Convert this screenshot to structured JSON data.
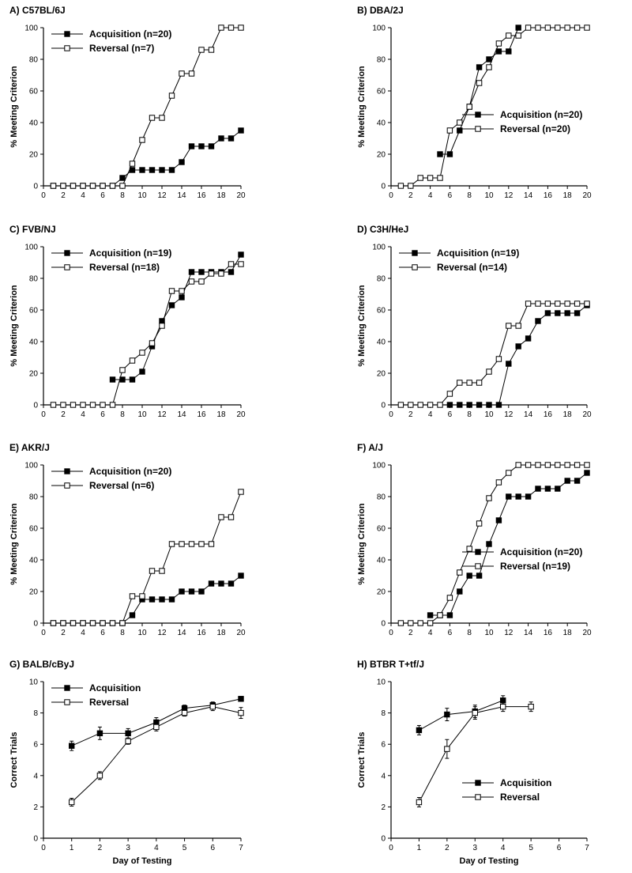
{
  "figure": {
    "panels": [
      {
        "id": "A",
        "title": "A) C57BL/6J",
        "ylabel": "% Meeting Criterion",
        "xlabel": "",
        "xlim": [
          0,
          20
        ],
        "ylim": [
          0,
          100
        ],
        "xticks": [
          0,
          2,
          4,
          6,
          8,
          10,
          12,
          14,
          16,
          18,
          20
        ],
        "yticks": [
          0,
          20,
          40,
          60,
          80,
          100
        ],
        "legend_position": "top-left",
        "series": [
          {
            "name": "Acquisition (n=20)",
            "marker": "filled",
            "x": [
              1,
              2,
              3,
              4,
              5,
              6,
              7,
              8,
              9,
              10,
              11,
              12,
              13,
              14,
              15,
              16,
              17,
              18,
              19,
              20
            ],
            "y": [
              0,
              0,
              0,
              0,
              0,
              0,
              0,
              5,
              10,
              10,
              10,
              10,
              10,
              15,
              25,
              25,
              25,
              30,
              30,
              35
            ]
          },
          {
            "name": "Reversal (n=7)",
            "marker": "open",
            "x": [
              1,
              2,
              3,
              4,
              5,
              6,
              7,
              8,
              9,
              10,
              11,
              12,
              13,
              14,
              15,
              16,
              17,
              18,
              19,
              20
            ],
            "y": [
              0,
              0,
              0,
              0,
              0,
              0,
              0,
              0,
              14,
              29,
              43,
              43,
              57,
              71,
              71,
              86,
              86,
              100,
              100,
              100
            ]
          }
        ]
      },
      {
        "id": "B",
        "title": "B) DBA/2J",
        "ylabel": "% Meeting Criterion",
        "xlabel": "",
        "xlim": [
          0,
          20
        ],
        "ylim": [
          0,
          100
        ],
        "xticks": [
          0,
          2,
          4,
          6,
          8,
          10,
          12,
          14,
          16,
          18,
          20
        ],
        "yticks": [
          0,
          20,
          40,
          60,
          80,
          100
        ],
        "legend_position": "center-right",
        "series": [
          {
            "name": "Acquisition (n=20)",
            "marker": "filled",
            "x": [
              5,
              6,
              7,
              8,
              9,
              10,
              11,
              12,
              13
            ],
            "y": [
              20,
              20,
              35,
              50,
              75,
              80,
              85,
              85,
              100
            ]
          },
          {
            "name": "Reversal (n=20)",
            "marker": "open",
            "x": [
              1,
              2,
              3,
              4,
              5,
              6,
              7,
              8,
              9,
              10,
              11,
              12,
              13,
              14,
              15,
              16,
              17,
              18,
              19,
              20
            ],
            "y": [
              0,
              0,
              5,
              5,
              5,
              35,
              40,
              50,
              65,
              75,
              90,
              95,
              95,
              100,
              100,
              100,
              100,
              100,
              100,
              100
            ]
          }
        ]
      },
      {
        "id": "C",
        "title": "C) FVB/NJ",
        "ylabel": "% Meeting Criterion",
        "xlabel": "",
        "xlim": [
          0,
          20
        ],
        "ylim": [
          0,
          100
        ],
        "xticks": [
          0,
          2,
          4,
          6,
          8,
          10,
          12,
          14,
          16,
          18,
          20
        ],
        "yticks": [
          0,
          20,
          40,
          60,
          80,
          100
        ],
        "legend_position": "top-left",
        "series": [
          {
            "name": "Acquisition (n=19)",
            "marker": "filled",
            "x": [
              7,
              8,
              9,
              10,
              11,
              12,
              13,
              14,
              15,
              16,
              17,
              18,
              19,
              20
            ],
            "y": [
              16,
              16,
              16,
              21,
              37,
              53,
              63,
              68,
              84,
              84,
              84,
              84,
              84,
              95
            ]
          },
          {
            "name": "Reversal (n=18)",
            "marker": "open",
            "x": [
              1,
              2,
              3,
              4,
              5,
              6,
              7,
              8,
              9,
              10,
              11,
              12,
              13,
              14,
              15,
              16,
              17,
              18,
              19,
              20
            ],
            "y": [
              0,
              0,
              0,
              0,
              0,
              0,
              0,
              22,
              28,
              33,
              39,
              50,
              72,
              72,
              78,
              78,
              83,
              83,
              89,
              89
            ]
          }
        ]
      },
      {
        "id": "D",
        "title": "D) C3H/HeJ",
        "ylabel": "% Meeting Criterion",
        "xlabel": "",
        "xlim": [
          0,
          20
        ],
        "ylim": [
          0,
          100
        ],
        "xticks": [
          0,
          2,
          4,
          6,
          8,
          10,
          12,
          14,
          16,
          18,
          20
        ],
        "yticks": [
          0,
          20,
          40,
          60,
          80,
          100
        ],
        "legend_position": "top-left",
        "series": [
          {
            "name": "Acquisition (n=19)",
            "marker": "filled",
            "x": [
              6,
              7,
              8,
              9,
              10,
              11,
              12,
              13,
              14,
              15,
              16,
              17,
              18,
              19,
              20
            ],
            "y": [
              0,
              0,
              0,
              0,
              0,
              0,
              26,
              37,
              42,
              53,
              58,
              58,
              58,
              58,
              63
            ]
          },
          {
            "name": "Reversal (n=14)",
            "marker": "open",
            "x": [
              1,
              2,
              3,
              4,
              5,
              6,
              7,
              8,
              9,
              10,
              11,
              12,
              13,
              14,
              15,
              16,
              17,
              18,
              19,
              20
            ],
            "y": [
              0,
              0,
              0,
              0,
              0,
              7,
              14,
              14,
              14,
              21,
              29,
              50,
              50,
              64,
              64,
              64,
              64,
              64,
              64,
              64
            ]
          }
        ]
      },
      {
        "id": "E",
        "title": "E) AKR/J",
        "ylabel": "% Meeting Criterion",
        "xlabel": "",
        "xlim": [
          0,
          20
        ],
        "ylim": [
          0,
          100
        ],
        "xticks": [
          0,
          2,
          4,
          6,
          8,
          10,
          12,
          14,
          16,
          18,
          20
        ],
        "yticks": [
          0,
          20,
          40,
          60,
          80,
          100
        ],
        "legend_position": "top-left",
        "series": [
          {
            "name": "Acquisition (n=20)",
            "marker": "filled",
            "x": [
              1,
              2,
              3,
              4,
              5,
              6,
              7,
              8,
              9,
              10,
              11,
              12,
              13,
              14,
              15,
              16,
              17,
              18,
              19,
              20
            ],
            "y": [
              0,
              0,
              0,
              0,
              0,
              0,
              0,
              0,
              5,
              15,
              15,
              15,
              15,
              20,
              20,
              20,
              25,
              25,
              25,
              30
            ]
          },
          {
            "name": "Reversal (n=6)",
            "marker": "open",
            "x": [
              1,
              2,
              3,
              4,
              5,
              6,
              7,
              8,
              9,
              10,
              11,
              12,
              13,
              14,
              15,
              16,
              17,
              18,
              19,
              20
            ],
            "y": [
              0,
              0,
              0,
              0,
              0,
              0,
              0,
              0,
              17,
              17,
              33,
              33,
              50,
              50,
              50,
              50,
              50,
              67,
              67,
              83
            ]
          }
        ]
      },
      {
        "id": "F",
        "title": "F) A/J",
        "ylabel": "% Meeting Criterion",
        "xlabel": "",
        "xlim": [
          0,
          20
        ],
        "ylim": [
          0,
          100
        ],
        "xticks": [
          0,
          2,
          4,
          6,
          8,
          10,
          12,
          14,
          16,
          18,
          20
        ],
        "yticks": [
          0,
          20,
          40,
          60,
          80,
          100
        ],
        "legend_position": "center-right",
        "series": [
          {
            "name": "Acquisition (n=20)",
            "marker": "filled",
            "x": [
              4,
              5,
              6,
              7,
              8,
              9,
              10,
              11,
              12,
              13,
              14,
              15,
              16,
              17,
              18,
              19,
              20
            ],
            "y": [
              5,
              5,
              5,
              20,
              30,
              30,
              50,
              65,
              80,
              80,
              80,
              85,
              85,
              85,
              90,
              90,
              95
            ]
          },
          {
            "name": "Reversal (n=19)",
            "marker": "open",
            "x": [
              1,
              2,
              3,
              4,
              5,
              6,
              7,
              8,
              9,
              10,
              11,
              12,
              13,
              14,
              15,
              16,
              17,
              18,
              19,
              20
            ],
            "y": [
              0,
              0,
              0,
              0,
              5,
              16,
              32,
              47,
              63,
              79,
              89,
              95,
              100,
              100,
              100,
              100,
              100,
              100,
              100,
              100
            ]
          }
        ]
      },
      {
        "id": "G",
        "title": "G) BALB/cByJ",
        "ylabel": "Correct Trials",
        "xlabel": "Day of Testing",
        "xlim": [
          0,
          7
        ],
        "ylim": [
          0,
          10
        ],
        "xticks": [
          0,
          1,
          2,
          3,
          4,
          5,
          6,
          7
        ],
        "yticks": [
          0,
          2,
          4,
          6,
          8,
          10
        ],
        "legend_position": "top-left",
        "series": [
          {
            "name": "Acquisition",
            "marker": "filled",
            "x": [
              1,
              2,
              3,
              4,
              5,
              6,
              7
            ],
            "y": [
              5.9,
              6.7,
              6.7,
              7.4,
              8.3,
              8.5,
              8.9
            ],
            "err": [
              0.3,
              0.4,
              0.3,
              0.3,
              0.2,
              0.2,
              0.15
            ]
          },
          {
            "name": "Reversal",
            "marker": "open",
            "x": [
              1,
              2,
              3,
              4,
              5,
              6,
              7
            ],
            "y": [
              2.3,
              4.0,
              6.2,
              7.1,
              8.0,
              8.4,
              8.0
            ],
            "err": [
              0.25,
              0.25,
              0.2,
              0.25,
              0.2,
              0.25,
              0.35
            ]
          }
        ]
      },
      {
        "id": "H",
        "title": "H) BTBR T+tf/J",
        "ylabel": "Correct Trials",
        "xlabel": "Day of Testing",
        "xlim": [
          0,
          7
        ],
        "ylim": [
          0,
          10
        ],
        "xticks": [
          0,
          1,
          2,
          3,
          4,
          5,
          6,
          7
        ],
        "yticks": [
          0,
          2,
          4,
          6,
          8,
          10
        ],
        "legend_position": "bottom-right",
        "series": [
          {
            "name": "Acquisition",
            "marker": "filled",
            "x": [
              1,
              2,
              3,
              4
            ],
            "y": [
              6.9,
              7.9,
              8.1,
              8.8
            ],
            "err": [
              0.3,
              0.4,
              0.4,
              0.3
            ]
          },
          {
            "name": "Reversal",
            "marker": "open",
            "x": [
              1,
              2,
              3,
              4,
              5
            ],
            "y": [
              2.3,
              5.7,
              8.0,
              8.4,
              8.4
            ],
            "err": [
              0.3,
              0.6,
              0.4,
              0.3,
              0.3
            ]
          }
        ]
      }
    ]
  }
}
